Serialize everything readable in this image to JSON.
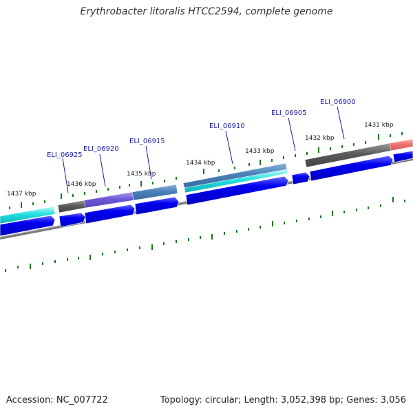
{
  "title": "Erythrobacter litoralis HTCC2594, complete genome",
  "accession_text": "Accession: NC_007722",
  "summary_text": "Topology: circular; Length: 3,052,398 bp; Genes: 3,056",
  "kbp_labels": [
    "1437 kbp",
    "1436 kbp",
    "1435 kbp",
    "1434 kbp",
    "1433 kbp",
    "1432 kbp",
    "1431 kbp"
  ],
  "gene_labels": [
    "ELI_06925",
    "ELI_06920",
    "ELI_06915",
    "ELI_06910",
    "ELI_06905",
    "ELI_06900"
  ],
  "colors": {
    "cds": "#0000ee",
    "backbone": "#808080",
    "tick": "#1a7a1a",
    "label": "#1a1aa8"
  }
}
